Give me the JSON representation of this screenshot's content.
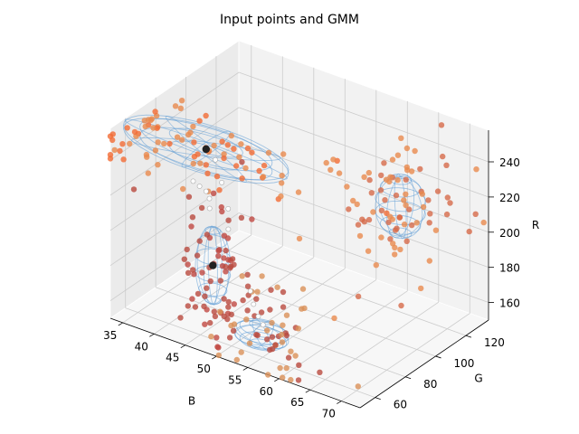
{
  "chart_data": {
    "type": "scatter",
    "title": "Input points and GMM",
    "xlabel": "B",
    "ylabel": "G",
    "zlabel": "R",
    "xlim": [
      33,
      73
    ],
    "ylim": [
      50,
      135
    ],
    "zlim": [
      150,
      258
    ],
    "x_ticks": [
      35,
      40,
      45,
      50,
      55,
      60,
      65,
      70
    ],
    "y_ticks": [
      60,
      80,
      100,
      120
    ],
    "z_ticks": [
      160,
      180,
      200,
      220,
      240
    ],
    "grid": true,
    "colors": {
      "pane_left": "#ebebeb",
      "pane_back": "#f2f2f2",
      "pane_floor": "#f7f7f7",
      "grid": "#cccccc",
      "ellipse": "#5b9bd5",
      "mean_marker": "#222222",
      "trajectory_marker": "#e0e0e0",
      "point_palette": [
        "#f4483a",
        "#f26b35",
        "#e98a4e",
        "#d66a4a",
        "#c04842",
        "#b94a3f",
        "#d99058"
      ]
    },
    "clusters": [
      {
        "mean": [
          43,
          70,
          246
        ],
        "spread": [
          14,
          16,
          4
        ],
        "color_index": 1,
        "count": 90
      },
      {
        "mean": [
          63,
          118,
          212
        ],
        "spread": [
          4,
          10,
          16
        ],
        "color_index": 2,
        "count": 80
      },
      {
        "mean": [
          47,
          60,
          190
        ],
        "spread": [
          3,
          6,
          20
        ],
        "color_index": 4,
        "count": 60
      },
      {
        "mean": [
          55,
          55,
          168
        ],
        "spread": [
          6,
          10,
          12
        ],
        "color_index": 5,
        "count": 70
      }
    ],
    "ellipsoids": [
      {
        "center": [
          43,
          72,
          246
        ],
        "radii": [
          13,
          16,
          4
        ]
      },
      {
        "center": [
          63,
          118,
          212
        ],
        "radii": [
          3.5,
          9,
          17
        ]
      },
      {
        "center": [
          47,
          60,
          192
        ],
        "radii": [
          2.5,
          6,
          22
        ]
      },
      {
        "center": [
          56,
          55,
          167
        ],
        "radii": [
          4,
          8,
          6
        ]
      }
    ],
    "means": [
      [
        43,
        72,
        246
      ],
      [
        47,
        60,
        192
      ]
    ],
    "trajectories": [
      [
        [
          39,
          80,
          218
        ],
        [
          41,
          76,
          220
        ],
        [
          43,
          72,
          222
        ],
        [
          45,
          66,
          224
        ],
        [
          46,
          62,
          222
        ]
      ],
      [
        [
          44,
          74,
          240
        ],
        [
          46,
          70,
          232
        ],
        [
          48,
          66,
          222
        ],
        [
          49,
          62,
          214
        ]
      ],
      [
        [
          53,
          60,
          185
        ],
        [
          54,
          58,
          180
        ],
        [
          55,
          57,
          175
        ],
        [
          56,
          56,
          172
        ]
      ]
    ]
  }
}
